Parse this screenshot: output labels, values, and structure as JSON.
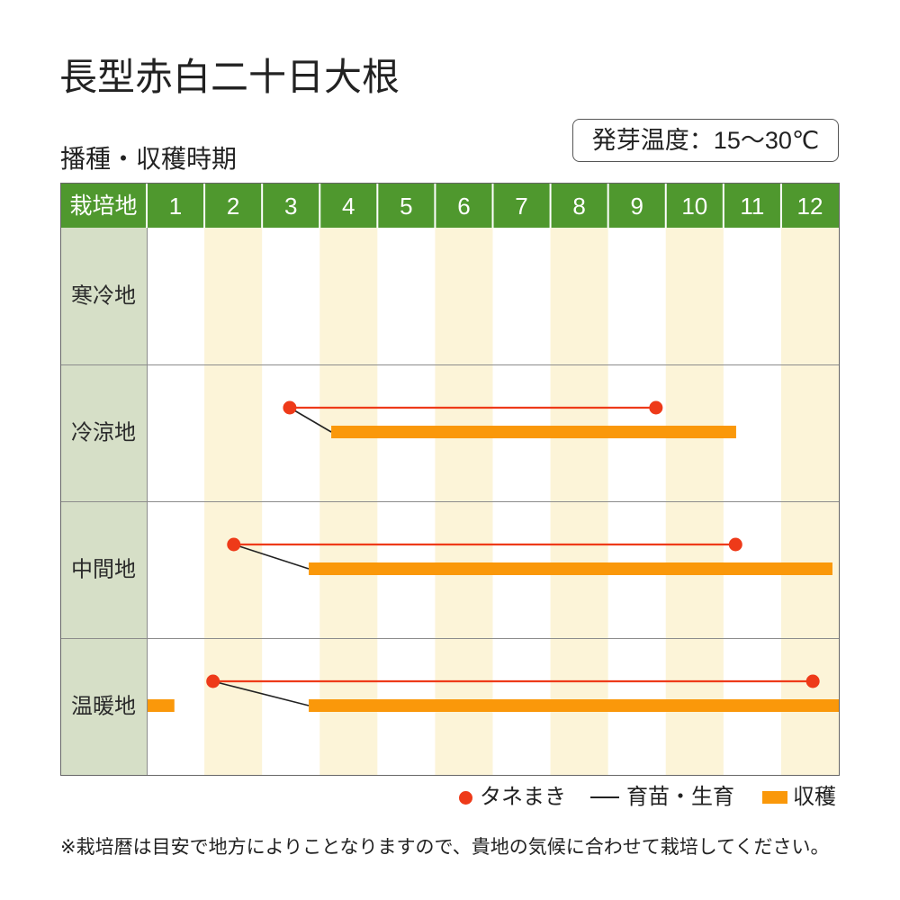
{
  "title": "長型赤白二十日大根",
  "subtitle": "播種・収穫時期",
  "germination_temp": "発芽温度：15〜30℃",
  "colors": {
    "header": "#4f982e",
    "region_column": "#d6dfc7",
    "stripe": "#fcf4d8"
  },
  "chart_data": {
    "type": "bar",
    "corner_label": "栽培地",
    "months": [
      1,
      2,
      3,
      4,
      5,
      6,
      7,
      8,
      9,
      10,
      11,
      12
    ],
    "xlim": [
      1,
      13
    ],
    "categories": [
      "寒冷地",
      "冷涼地",
      "中間地",
      "温暖地"
    ],
    "series": [
      {
        "name": "タネまき",
        "color": "#ee3a19",
        "ranges": [
          [],
          [
            [
              3.48,
              9.83
            ]
          ],
          [
            [
              2.51,
              11.21
            ]
          ],
          [
            [
              2.15,
              12.55
            ]
          ]
        ]
      },
      {
        "name": "育苗・生育",
        "color": "#222222",
        "ranges": [
          [],
          [
            [
              3.48,
              4.2
            ]
          ],
          [
            [
              2.51,
              3.81
            ]
          ],
          [
            [
              2.15,
              3.81
            ]
          ]
        ]
      },
      {
        "name": "収穫",
        "color": "#fa980a",
        "ranges": [
          [],
          [
            [
              4.2,
              11.22
            ]
          ],
          [
            [
              3.81,
              12.89
            ]
          ],
          [
            [
              1.0,
              1.48
            ],
            [
              3.81,
              13.0
            ]
          ]
        ]
      }
    ],
    "grid": true,
    "legend": "bottom-right"
  },
  "footnote": "※栽培暦は目安で地方によりことなりますので、貴地の気候に合わせて栽培してください。"
}
